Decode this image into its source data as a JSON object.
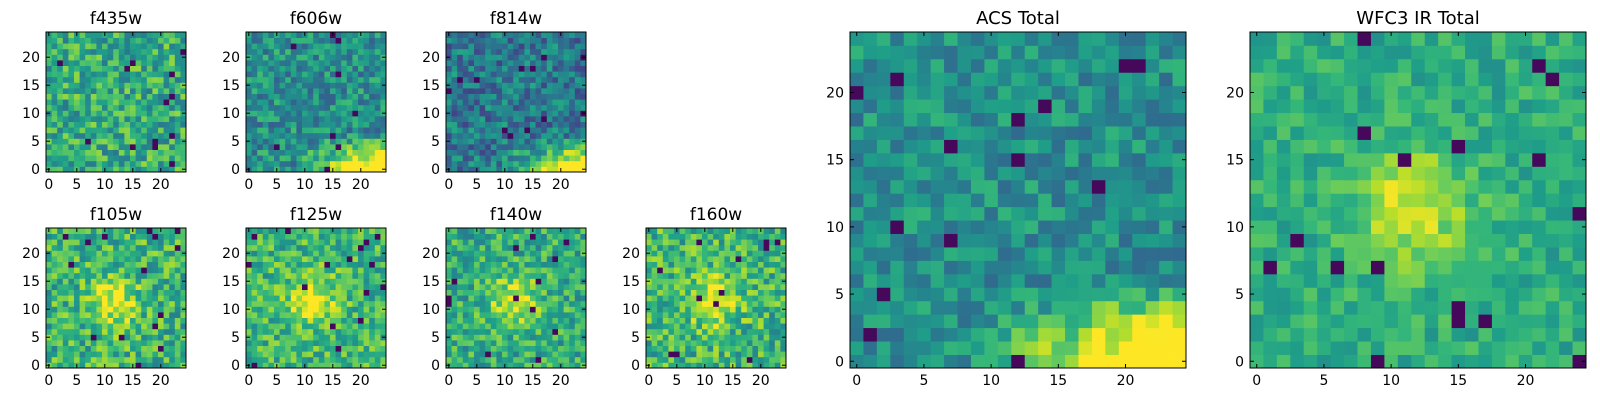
{
  "chart_data": [
    {
      "type": "heatmap",
      "title": "f435w",
      "x_ticks": [
        0,
        5,
        10,
        15,
        20
      ],
      "y_ticks": [
        0,
        5,
        10,
        15,
        20
      ],
      "grid_size": 25,
      "xlim": [
        -0.5,
        24.5
      ],
      "ylim": [
        -0.5,
        24.5
      ],
      "colormap": "viridis",
      "pattern": "noise",
      "level": 0.62,
      "noise": 0.22
    },
    {
      "type": "heatmap",
      "title": "f606w",
      "x_ticks": [
        0,
        5,
        10,
        15,
        20
      ],
      "y_ticks": [
        0,
        5,
        10,
        15,
        20
      ],
      "grid_size": 25,
      "xlim": [
        -0.5,
        24.5
      ],
      "ylim": [
        -0.5,
        24.5
      ],
      "colormap": "viridis",
      "pattern": "noise-with-bright-bottom-right",
      "level": 0.5,
      "noise": 0.2
    },
    {
      "type": "heatmap",
      "title": "f814w",
      "x_ticks": [
        0,
        5,
        10,
        15,
        20
      ],
      "y_ticks": [
        0,
        5,
        10,
        15,
        20
      ],
      "grid_size": 25,
      "xlim": [
        -0.5,
        24.5
      ],
      "ylim": [
        -0.5,
        24.5
      ],
      "colormap": "viridis",
      "pattern": "noise-with-bright-bottom-right",
      "level": 0.4,
      "noise": 0.2
    },
    {
      "type": "heatmap",
      "title": "f105w",
      "x_ticks": [
        0,
        5,
        10,
        15,
        20
      ],
      "y_ticks": [
        0,
        5,
        10,
        15,
        20
      ],
      "grid_size": 25,
      "xlim": [
        -0.5,
        24.5
      ],
      "ylim": [
        -0.5,
        24.5
      ],
      "colormap": "viridis",
      "pattern": "noise-with-center-blob",
      "level": 0.65,
      "noise": 0.22
    },
    {
      "type": "heatmap",
      "title": "f125w",
      "x_ticks": [
        0,
        5,
        10,
        15,
        20
      ],
      "y_ticks": [
        0,
        5,
        10,
        15,
        20
      ],
      "grid_size": 25,
      "xlim": [
        -0.5,
        24.5
      ],
      "ylim": [
        -0.5,
        24.5
      ],
      "colormap": "viridis",
      "pattern": "noise-with-center-blob",
      "level": 0.66,
      "noise": 0.2
    },
    {
      "type": "heatmap",
      "title": "f140w",
      "x_ticks": [
        0,
        5,
        10,
        15,
        20
      ],
      "y_ticks": [
        0,
        5,
        10,
        15,
        20
      ],
      "grid_size": 25,
      "xlim": [
        -0.5,
        24.5
      ],
      "ylim": [
        -0.5,
        24.5
      ],
      "colormap": "viridis",
      "pattern": "noise-with-center-blob",
      "level": 0.62,
      "noise": 0.2
    },
    {
      "type": "heatmap",
      "title": "f160w",
      "x_ticks": [
        0,
        5,
        10,
        15,
        20
      ],
      "y_ticks": [
        0,
        5,
        10,
        15,
        20
      ],
      "grid_size": 25,
      "xlim": [
        -0.5,
        24.5
      ],
      "ylim": [
        -0.5,
        24.5
      ],
      "colormap": "viridis",
      "pattern": "noise-with-center-blob",
      "level": 0.66,
      "noise": 0.22
    },
    {
      "type": "heatmap",
      "title": "ACS Total",
      "x_ticks": [
        0,
        5,
        10,
        15,
        20
      ],
      "y_ticks": [
        0,
        5,
        10,
        15,
        20
      ],
      "grid_size": 25,
      "xlim": [
        -0.5,
        24.5
      ],
      "ylim": [
        -0.5,
        24.5
      ],
      "colormap": "viridis",
      "pattern": "noise-with-bright-bottom-right",
      "level": 0.5,
      "noise": 0.16
    },
    {
      "type": "heatmap",
      "title": "WFC3 IR Total",
      "x_ticks": [
        0,
        5,
        10,
        15,
        20
      ],
      "y_ticks": [
        0,
        5,
        10,
        15,
        20
      ],
      "grid_size": 25,
      "xlim": [
        -0.5,
        24.5
      ],
      "ylim": [
        -0.5,
        24.5
      ],
      "colormap": "viridis",
      "pattern": "noise-with-center-blob",
      "level": 0.62,
      "noise": 0.12
    }
  ]
}
